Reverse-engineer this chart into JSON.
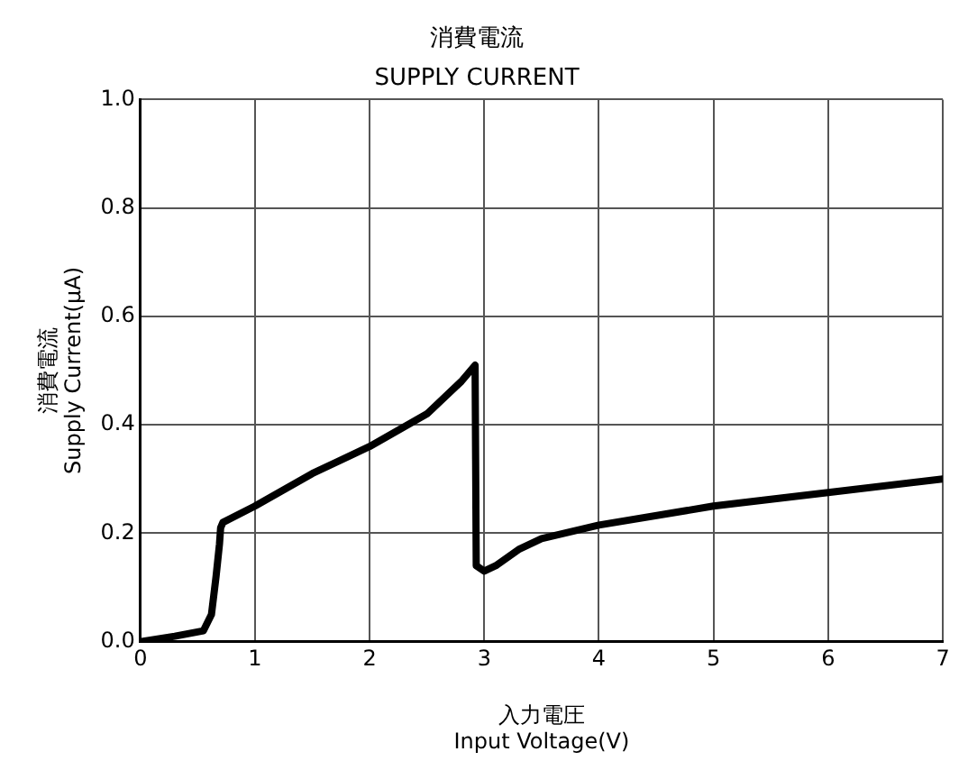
{
  "chart_data": {
    "type": "line",
    "title": "消費電流",
    "subtitle": "SUPPLY CURRENT",
    "xlabel": "入力電圧\nInput Voltage(V)",
    "ylabel": "消費電流\nSupply Current(μA)",
    "xlim": [
      0,
      7
    ],
    "xticks": [
      0,
      1,
      2,
      3,
      4,
      5,
      6,
      7
    ],
    "ylim": [
      0,
      1
    ],
    "yticks": [
      {
        "value": 0,
        "label": "0.0"
      },
      {
        "value": 0.2,
        "label": "0.2"
      },
      {
        "value": 0.4,
        "label": "0.4"
      },
      {
        "value": 0.6,
        "label": "0.6"
      },
      {
        "value": 0.8,
        "label": "0.8"
      },
      {
        "value": 1,
        "label": "1.0"
      }
    ],
    "grid": true,
    "legend": false,
    "marker": "none",
    "line_style": "solid",
    "series": [
      {
        "color": "#000000",
        "x": [
          0,
          0.3,
          0.55,
          0.62,
          0.66,
          0.69,
          0.7,
          0.72,
          1,
          1.5,
          2,
          2.5,
          2.8,
          2.92,
          2.93,
          3,
          3.1,
          3.3,
          3.5,
          4,
          5,
          6,
          7
        ],
        "values": [
          0,
          0.01,
          0.02,
          0.05,
          0.12,
          0.18,
          0.21,
          0.22,
          0.25,
          0.31,
          0.36,
          0.42,
          0.48,
          0.51,
          0.14,
          0.13,
          0.14,
          0.17,
          0.19,
          0.215,
          0.25,
          0.275,
          0.3
        ]
      }
    ]
  }
}
